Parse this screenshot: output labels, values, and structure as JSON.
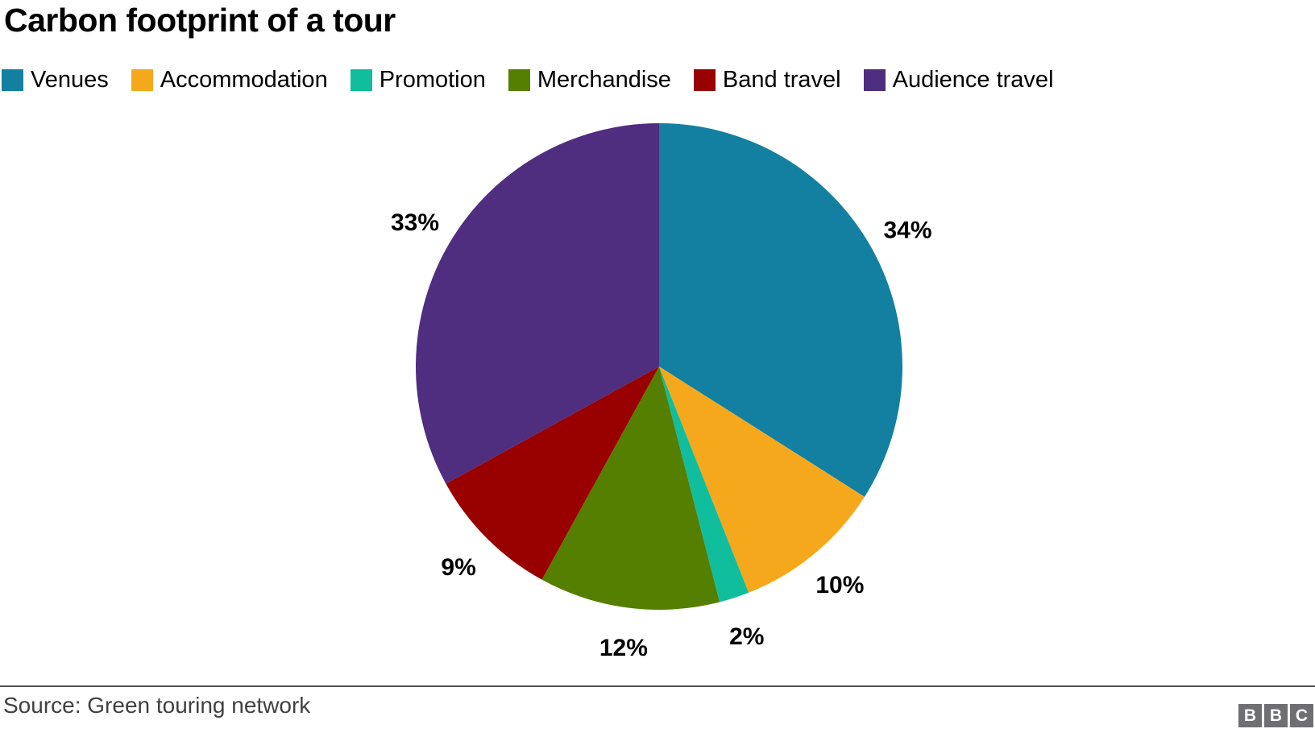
{
  "title": "Carbon footprint of a tour",
  "legend": {
    "items": [
      {
        "label": "Venues",
        "color": "#1380A1"
      },
      {
        "label": "Accommodation",
        "color": "#F6A81C"
      },
      {
        "label": "Promotion",
        "color": "#10BE9E"
      },
      {
        "label": "Merchandise",
        "color": "#557F00"
      },
      {
        "label": "Band travel",
        "color": "#990000"
      },
      {
        "label": "Audience travel",
        "color": "#4F2D7F"
      }
    ]
  },
  "chart_data": {
    "type": "pie",
    "title": "Carbon footprint of a tour",
    "categories": [
      "Venues",
      "Accommodation",
      "Promotion",
      "Merchandise",
      "Band travel",
      "Audience travel"
    ],
    "values": [
      34,
      10,
      2,
      12,
      9,
      33
    ],
    "labels": [
      "34%",
      "10%",
      "2%",
      "12%",
      "9%",
      "33%"
    ],
    "colors": [
      "#1380A1",
      "#F6A81C",
      "#10BE9E",
      "#557F00",
      "#990000",
      "#4F2D7F"
    ],
    "units": "percent",
    "start_angle_deg": 0,
    "direction": "clockwise",
    "legend_position": "top"
  },
  "footer": {
    "source": "Source: Green touring network",
    "logo_letters": [
      "B",
      "B",
      "C"
    ]
  }
}
